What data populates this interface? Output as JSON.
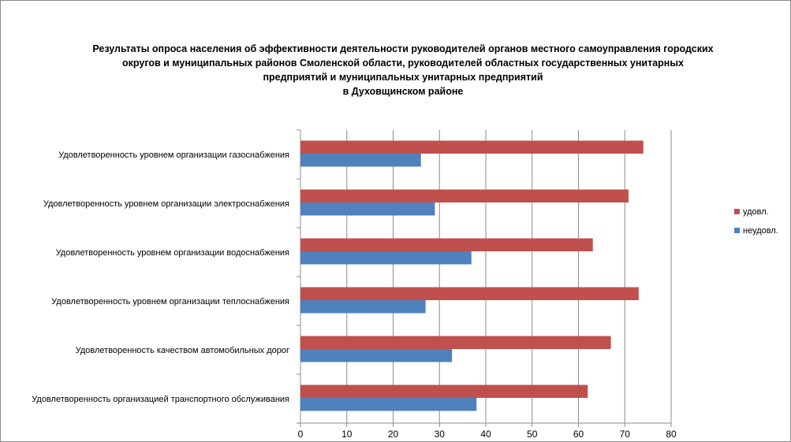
{
  "chart_data": {
    "type": "bar",
    "orientation": "horizontal",
    "title_lines": [
      "Результаты опроса населения об эффективности деятельности руководителей органов местного самоуправления городских",
      "округов и муниципальных районов Смоленской области, руководителей областных государственных унитарных",
      "предприятий и  муниципальных унитарных предприятий",
      "в Духовщинском районе"
    ],
    "categories": [
      "Удовлетворенность  уровнем  организации газоснабжения",
      "Удовлетворенность  уровнем  организации электроснабжения",
      "Удовлетворенность  уровнем  организации водоснабжения",
      "Удовлетворенность  уровнем  организации теплоснабжения",
      "Удовлетворенность  качеством  автомобильных дорог",
      "Удовлетворенность  организацией  транспортного обслуживания"
    ],
    "series": [
      {
        "name": "удовл.",
        "color": "#c0504d",
        "values": [
          74,
          70.8,
          63.1,
          73,
          67,
          62
        ]
      },
      {
        "name": "неудовл.",
        "color": "#4f81bd",
        "values": [
          26,
          29,
          36.9,
          27,
          32.7,
          38
        ]
      }
    ],
    "xlim": [
      0,
      80
    ],
    "xticks": [
      0,
      10,
      20,
      30,
      40,
      50,
      60,
      70,
      80
    ],
    "grid": true,
    "legend_position": "right"
  }
}
